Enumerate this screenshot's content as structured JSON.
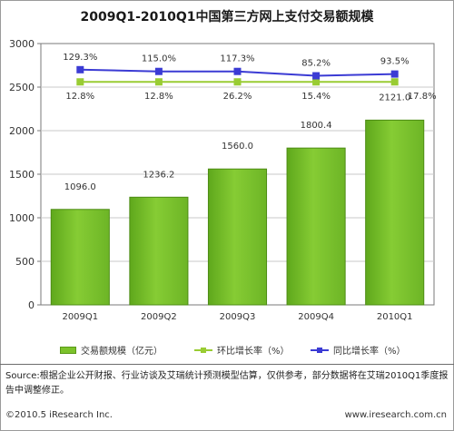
{
  "title": "2009Q1-2010Q1中国第三方网上支付交易额规模",
  "chart_data": {
    "type": "bar",
    "categories": [
      "2009Q1",
      "2009Q2",
      "2009Q3",
      "2009Q4",
      "2010Q1"
    ],
    "ylim": [
      0,
      3000
    ],
    "yticks": [
      0,
      500,
      1000,
      1500,
      2000,
      2500,
      3000
    ],
    "grid": true,
    "legend_position": "bottom",
    "bar_series": {
      "name": "交易额规模（亿元）",
      "values": [
        1096.0,
        1236.2,
        1560.0,
        1800.4,
        2121.0
      ],
      "labels": [
        "1096.0",
        "1236.2",
        "1560.0",
        "1800.4",
        "2121.0"
      ],
      "color": "#7cc22b"
    },
    "line_series": [
      {
        "name": "环比增长率（%）",
        "values": [
          12.8,
          12.8,
          26.2,
          15.4,
          17.8
        ],
        "labels": [
          "12.8%",
          "12.8%",
          "26.2%",
          "15.4%",
          "17.8%"
        ],
        "color": "#99cc33",
        "level": 2560
      },
      {
        "name": "同比增长率（%）",
        "values": [
          129.3,
          115.0,
          117.3,
          85.2,
          93.5
        ],
        "labels": [
          "129.3%",
          "115.0%",
          "117.3%",
          "85.2%",
          "93.5%"
        ],
        "color": "#3b3bd4",
        "levels": [
          2700,
          2680,
          2680,
          2630,
          2650
        ]
      }
    ]
  },
  "legend": {
    "bar": "交易额规模（亿元）",
    "mom": "环比增长率（%）",
    "yoy": "同比增长率（%）"
  },
  "source_text": "Source:根据企业公开财报、行业访谈及艾瑞统计预测模型估算，仅供参考，部分数据将在艾瑞2010Q1季度报告中调整修正。",
  "footer": {
    "copyright": "©2010.5 iResearch Inc.",
    "site": "www.iresearch.com.cn"
  }
}
